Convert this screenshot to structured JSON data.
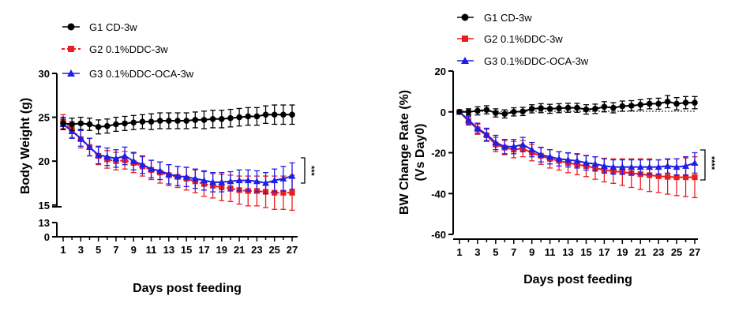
{
  "chart_data": [
    {
      "type": "line",
      "xlabel": "Days post feeding",
      "ylabel": "Body Weight (g)",
      "x": [
        1,
        2,
        3,
        4,
        5,
        6,
        7,
        8,
        9,
        10,
        11,
        12,
        13,
        14,
        15,
        16,
        17,
        18,
        19,
        20,
        21,
        22,
        23,
        24,
        25,
        26,
        27
      ],
      "x_ticks": [
        1,
        3,
        5,
        7,
        9,
        11,
        13,
        15,
        17,
        19,
        21,
        23,
        25,
        27
      ],
      "y_ticks": [
        0,
        13,
        15,
        20,
        25,
        30
      ],
      "y_axis_break": [
        0,
        13
      ],
      "ylim": [
        0,
        30
      ],
      "significance": "***",
      "series": [
        {
          "name": "G1 CD-3w",
          "color": "#000000",
          "marker": "circle",
          "dashed": false,
          "values": [
            24.3,
            24.2,
            24.3,
            24.2,
            23.9,
            24.0,
            24.2,
            24.3,
            24.4,
            24.5,
            24.5,
            24.6,
            24.6,
            24.6,
            24.6,
            24.7,
            24.7,
            24.8,
            24.8,
            24.9,
            25.0,
            25.1,
            25.1,
            25.3,
            25.3,
            25.3,
            25.3
          ],
          "errors": [
            0.7,
            0.7,
            0.7,
            0.7,
            0.8,
            0.8,
            0.8,
            0.8,
            0.8,
            0.8,
            0.9,
            0.9,
            0.9,
            0.9,
            0.9,
            0.9,
            1.0,
            1.0,
            1.0,
            1.0,
            1.0,
            1.0,
            1.0,
            1.0,
            1.1,
            1.1,
            1.1
          ]
        },
        {
          "name": "G2 0.1%DDC-3w",
          "color": "#ee1c1c",
          "marker": "square",
          "dashed": true,
          "values": [
            24.5,
            23.6,
            22.5,
            21.6,
            20.6,
            20.2,
            20.0,
            20.1,
            19.8,
            19.4,
            19.0,
            18.7,
            18.4,
            18.2,
            18.0,
            17.7,
            17.4,
            17.2,
            17.0,
            16.9,
            16.7,
            16.6,
            16.6,
            16.5,
            16.4,
            16.4,
            16.4
          ],
          "errors": [
            0.8,
            0.9,
            1.0,
            1.0,
            1.0,
            1.0,
            1.0,
            1.0,
            1.1,
            1.1,
            1.1,
            1.2,
            1.2,
            1.2,
            1.3,
            1.3,
            1.4,
            1.4,
            1.5,
            1.5,
            1.6,
            1.7,
            1.7,
            1.8,
            1.9,
            1.9,
            2.0
          ]
        },
        {
          "name": "G3 0.1%DDC-OCA-3w",
          "color": "#1e1ee6",
          "marker": "triangle",
          "dashed": false,
          "values": [
            24.2,
            23.4,
            22.6,
            21.6,
            20.7,
            20.5,
            20.3,
            20.6,
            20.0,
            19.6,
            19.1,
            18.9,
            18.5,
            18.3,
            18.2,
            18.0,
            17.8,
            17.6,
            17.6,
            17.7,
            17.8,
            17.8,
            17.7,
            17.5,
            17.8,
            18.0,
            18.3
          ],
          "errors": [
            0.6,
            0.8,
            0.9,
            1.0,
            1.0,
            1.0,
            1.0,
            1.0,
            1.0,
            1.0,
            1.0,
            1.0,
            1.1,
            1.1,
            1.1,
            1.1,
            1.1,
            1.1,
            1.1,
            1.1,
            1.2,
            1.2,
            1.2,
            1.2,
            1.3,
            1.4,
            1.5
          ]
        }
      ]
    },
    {
      "type": "line",
      "xlabel": "Days post feeding",
      "ylabel": "BW Change Rate (%)",
      "ylabel2": "(Vs Day0)",
      "x": [
        1,
        2,
        3,
        4,
        5,
        6,
        7,
        8,
        9,
        10,
        11,
        12,
        13,
        14,
        15,
        16,
        17,
        18,
        19,
        20,
        21,
        22,
        23,
        24,
        25,
        26,
        27
      ],
      "x_ticks": [
        1,
        3,
        5,
        7,
        9,
        11,
        13,
        15,
        17,
        19,
        21,
        23,
        25,
        27
      ],
      "y_ticks": [
        -60,
        -40,
        -20,
        0,
        20
      ],
      "ylim": [
        -60,
        20
      ],
      "reference_line": 0,
      "significance": "****",
      "series": [
        {
          "name": "G1 CD-3w",
          "color": "#000000",
          "marker": "circle",
          "dashed": false,
          "values": [
            0,
            0,
            0.5,
            1.0,
            -0.5,
            -1.0,
            0,
            0.2,
            1.5,
            1.8,
            1.5,
            1.8,
            2.0,
            2.0,
            1.2,
            1.5,
            2.5,
            2.0,
            2.8,
            3.0,
            3.5,
            4.0,
            4.0,
            5.0,
            4.0,
            4.5,
            4.5
          ],
          "errors": [
            0,
            1.5,
            2.0,
            2.0,
            2.0,
            2.0,
            2.0,
            2.0,
            2.0,
            2.2,
            2.2,
            2.2,
            2.2,
            2.2,
            2.3,
            2.3,
            2.5,
            2.5,
            2.5,
            2.5,
            2.5,
            2.5,
            2.7,
            3.0,
            3.0,
            3.0,
            3.0
          ]
        },
        {
          "name": "G2 0.1%DDC-3w",
          "color": "#ee1c1c",
          "marker": "square",
          "dashed": false,
          "values": [
            0,
            -4.5,
            -8.5,
            -11.5,
            -16,
            -17.5,
            -18.5,
            -18,
            -20,
            -21.5,
            -23,
            -24,
            -25,
            -25.8,
            -26.5,
            -27.5,
            -28.5,
            -29,
            -29.5,
            -30,
            -30.5,
            -31,
            -31.5,
            -31.8,
            -32,
            -32,
            -32
          ],
          "errors": [
            0,
            2.0,
            2.5,
            3.0,
            3.5,
            3.5,
            4.0,
            4.0,
            4.0,
            4.2,
            4.5,
            4.5,
            4.8,
            5.0,
            5.2,
            5.5,
            5.8,
            6.0,
            6.5,
            7.0,
            7.5,
            8.0,
            8.0,
            8.5,
            9.0,
            9.5,
            10.0
          ]
        },
        {
          "name": "G3 0.1%DDC-OCA-3w",
          "color": "#1e1ee6",
          "marker": "triangle",
          "dashed": false,
          "values": [
            0,
            -4,
            -8,
            -11,
            -15,
            -17,
            -17,
            -16,
            -18.5,
            -21,
            -22,
            -23,
            -23.5,
            -24,
            -25,
            -25.5,
            -26.5,
            -27,
            -27,
            -27,
            -27,
            -27,
            -27,
            -26.5,
            -27,
            -26.5,
            -25
          ],
          "errors": [
            0,
            2.0,
            2.5,
            3.0,
            3.5,
            3.5,
            3.5,
            3.5,
            3.5,
            3.5,
            3.5,
            3.5,
            3.5,
            3.5,
            3.5,
            3.5,
            3.5,
            3.5,
            3.5,
            3.5,
            3.5,
            3.5,
            3.5,
            3.5,
            4.0,
            4.5,
            5.0
          ]
        }
      ]
    }
  ]
}
